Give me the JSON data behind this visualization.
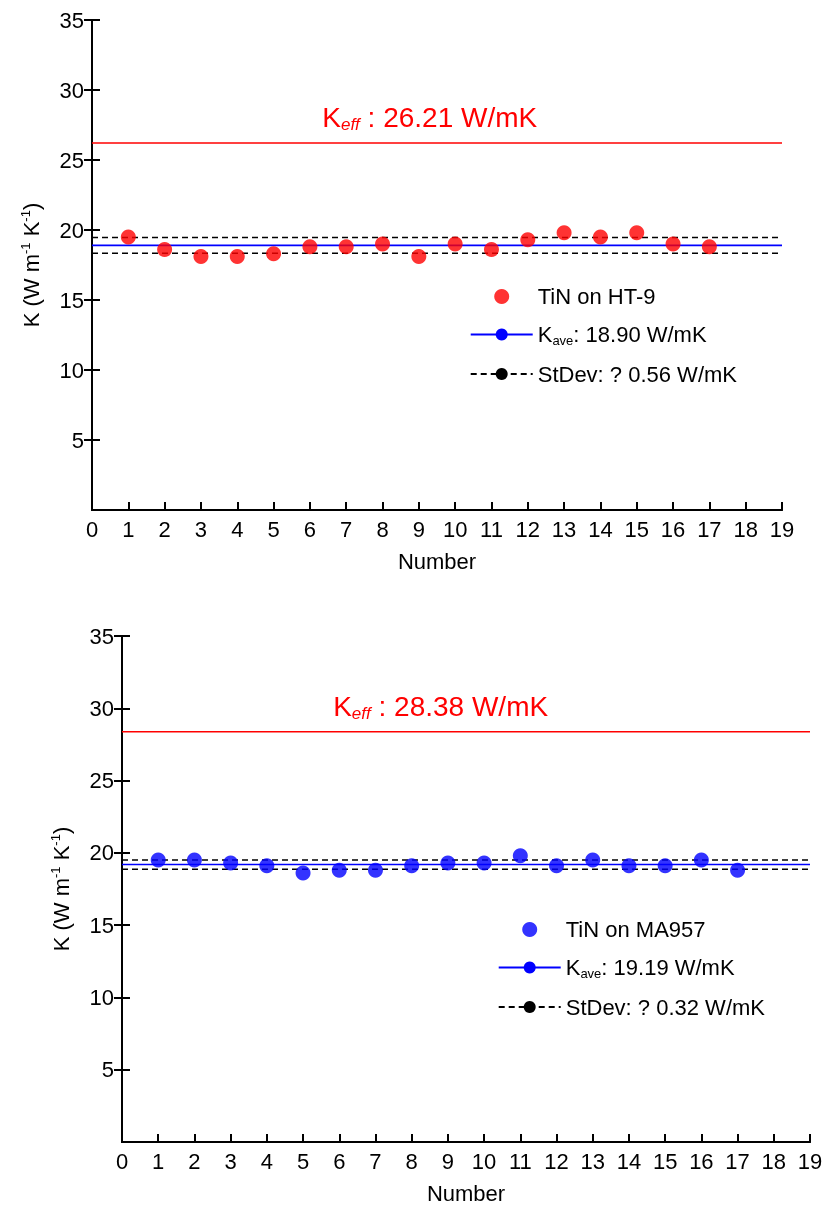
{
  "chart_data": [
    {
      "type": "scatter",
      "xlabel": "Number",
      "ylabel": "K (W m$^{-1}$ K$^{-1}$)",
      "x": [
        1,
        2,
        3,
        4,
        5,
        6,
        7,
        8,
        9,
        10,
        11,
        12,
        13,
        14,
        15,
        16,
        17
      ],
      "series": [
        {
          "name": "TiN on HT-9",
          "color": "#ff0000",
          "values": [
            19.5,
            18.6,
            18.1,
            18.1,
            18.3,
            18.8,
            18.8,
            19.0,
            18.1,
            19.0,
            18.6,
            19.3,
            19.8,
            19.5,
            19.8,
            19.0,
            18.8
          ]
        }
      ],
      "xlim": [
        0,
        19
      ],
      "xticks": [
        0,
        1,
        2,
        3,
        4,
        5,
        6,
        7,
        8,
        9,
        10,
        11,
        12,
        13,
        14,
        15,
        16,
        17,
        18,
        19
      ],
      "ylim": [
        0,
        35
      ],
      "yticks": [
        5,
        10,
        15,
        20,
        25,
        30,
        35
      ],
      "ref_lines": [
        {
          "axis": "y",
          "value": 26.21,
          "color": "#ff0000",
          "line_style": "solid"
        },
        {
          "axis": "y",
          "value": 18.9,
          "label": "K$_{ave}$: 18.90 W/mK",
          "color": "#0000ff",
          "line_style": "solid"
        },
        {
          "axis": "y",
          "value": 19.46,
          "label": "StDev: ? 0.56 W/mK",
          "color": "#000000",
          "line_style": "dashed"
        },
        {
          "axis": "y",
          "value": 18.34,
          "color": "#000000",
          "line_style": "dashed"
        }
      ],
      "annotations": [
        {
          "text": "K$_{eff}$ : 26.21 W/mK",
          "x": 9.3,
          "y": 26.21
        }
      ],
      "marker": "circle",
      "grid": false,
      "legend": "bottom right"
    },
    {
      "type": "scatter",
      "xlabel": "Number",
      "ylabel": "K (W m$^{-1}$ K$^{-1}$)",
      "x": [
        1,
        2,
        3,
        4,
        5,
        6,
        7,
        8,
        9,
        10,
        11,
        12,
        13,
        14,
        15,
        16,
        17
      ],
      "series": [
        {
          "name": "TiN on MA957",
          "color": "#0000ff",
          "values": [
            19.5,
            19.5,
            19.3,
            19.1,
            18.6,
            18.8,
            18.8,
            19.1,
            19.3,
            19.3,
            19.8,
            19.1,
            19.5,
            19.1,
            19.1,
            19.5,
            18.8
          ]
        }
      ],
      "xlim": [
        0,
        19
      ],
      "xticks": [
        0,
        1,
        2,
        3,
        4,
        5,
        6,
        7,
        8,
        9,
        10,
        11,
        12,
        13,
        14,
        15,
        16,
        17,
        18,
        19
      ],
      "ylim": [
        0,
        35
      ],
      "yticks": [
        5,
        10,
        15,
        20,
        25,
        30,
        35
      ],
      "ref_lines": [
        {
          "axis": "y",
          "value": 28.38,
          "color": "#ff0000",
          "line_style": "solid"
        },
        {
          "axis": "y",
          "value": 19.19,
          "label": "K$_{ave}$: 19.19 W/mK",
          "color": "#0000ff",
          "line_style": "solid"
        },
        {
          "axis": "y",
          "value": 19.51,
          "label": "StDev: ? 0.32 W/mK",
          "color": "#000000",
          "line_style": "dashed"
        },
        {
          "axis": "y",
          "value": 18.87,
          "color": "#000000",
          "line_style": "dashed"
        }
      ],
      "annotations": [
        {
          "text": "K$_{eff}$ : 28.38 W/mK",
          "x": 8.8,
          "y": 28.38
        }
      ],
      "marker": "circle",
      "grid": false,
      "legend": "bottom right"
    }
  ]
}
